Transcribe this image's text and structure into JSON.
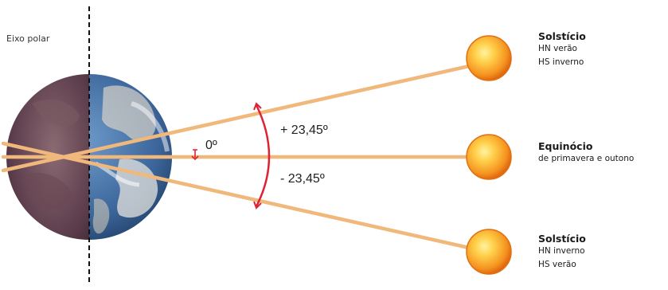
{
  "axis_label": "Eixo polar",
  "angles": {
    "upper": "+ 23,45º",
    "zero": "0º",
    "lower": "- 23,45º"
  },
  "suns": [
    {
      "title": "Solstício",
      "lines": [
        "HN verão",
        "HS inverno"
      ]
    },
    {
      "title": "Equinócio",
      "lines": [
        "de primavera e outono"
      ]
    },
    {
      "title": "Solstício",
      "lines": [
        "HN inverno",
        "HS verão"
      ]
    }
  ],
  "colors": {
    "ray": "#f0b87a",
    "arc": "#dd2233",
    "sun_core": "#ffcf4a",
    "sun_edge": "#f07a10",
    "earth_ocean": "#3f6fa8",
    "earth_night": "#5a3b4a"
  },
  "icons": [
    "earth-icon",
    "sun-icon"
  ]
}
